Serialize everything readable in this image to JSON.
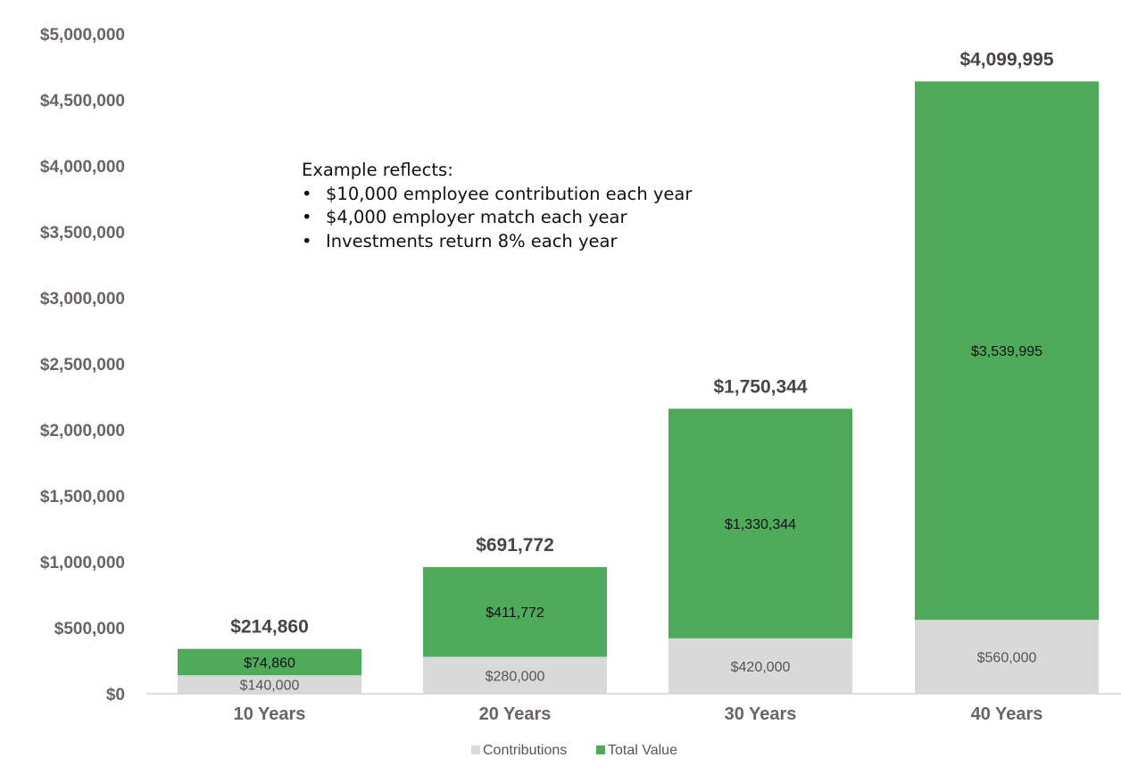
{
  "chart_data": {
    "type": "bar",
    "stacked": true,
    "categories": [
      "10 Years",
      "20 Years",
      "30 Years",
      "40 Years"
    ],
    "series": [
      {
        "name": "Contributions",
        "values": [
          140000,
          280000,
          420000,
          560000
        ],
        "labels": [
          "$140,000",
          "$280,000",
          "$420,000",
          "$560,000"
        ],
        "color": "#d9d9d9"
      },
      {
        "name": "Total Value",
        "values": [
          74860,
          411772,
          1330344,
          3539995
        ],
        "labels": [
          "$74,860",
          "$411,772",
          "$1,330,344",
          "$3,539,995"
        ],
        "color": "#4fab5b"
      }
    ],
    "totals": [
      "$214,860",
      "$691,772",
      "$1,750,344",
      "$4,099,995"
    ],
    "stack_heights": [
      340000,
      960000,
      2160000,
      4640000
    ],
    "y_ticks": [
      "$0",
      "$500,000",
      "$1,000,000",
      "$1,500,000",
      "$2,000,000",
      "$2,500,000",
      "$3,000,000",
      "$3,500,000",
      "$4,000,000",
      "$4,500,000",
      "$5,000,000"
    ],
    "ylim": [
      0,
      5000000
    ],
    "legend_position": "bottom-center",
    "grid": false
  },
  "annotation": {
    "heading": "Example reflects:",
    "bullets": [
      "$10,000 employee contribution each year",
      "$4,000 employer match each year",
      "Investments return 8% each year"
    ]
  }
}
